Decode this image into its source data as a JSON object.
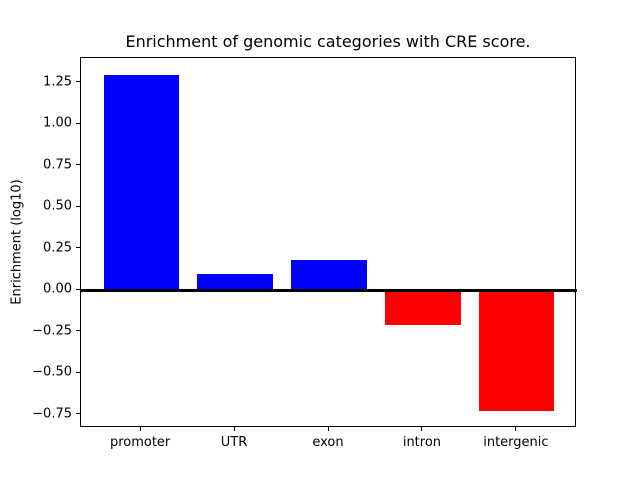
{
  "figure": {
    "background": "#ffffff"
  },
  "chart_data": {
    "type": "bar",
    "title": "Enrichment of genomic categories with CRE score.",
    "xlabel": "",
    "ylabel": "Enrichment (log10)",
    "categories": [
      "promoter",
      "UTR",
      "exon",
      "intron",
      "intergenic"
    ],
    "values": [
      1.3,
      0.1,
      0.18,
      -0.21,
      -0.73
    ],
    "bar_colors": [
      "#0000ff",
      "#0000ff",
      "#0000ff",
      "#ff0000",
      "#ff0000"
    ],
    "positive_color": "#0000ff",
    "negative_color": "#ff0000",
    "yticks": [
      {
        "value": 1.25,
        "label": "1.25"
      },
      {
        "value": 1.0,
        "label": "1.00"
      },
      {
        "value": 0.75,
        "label": "0.75"
      },
      {
        "value": 0.5,
        "label": "0.50"
      },
      {
        "value": 0.25,
        "label": "0.25"
      },
      {
        "value": 0.0,
        "label": "0.00"
      },
      {
        "value": -0.25,
        "label": "−0.25"
      },
      {
        "value": -0.5,
        "label": "−0.50"
      },
      {
        "value": -0.75,
        "label": "−0.75"
      }
    ],
    "ylim": [
      -0.83,
      1.4
    ],
    "xlim": [
      -0.64,
      4.64
    ],
    "bar_width": 0.8,
    "zero_line": {
      "value": 0,
      "color": "#000000"
    },
    "grid": "off",
    "legend": "none",
    "axis_color": "#000000",
    "text_color": "#000000"
  }
}
